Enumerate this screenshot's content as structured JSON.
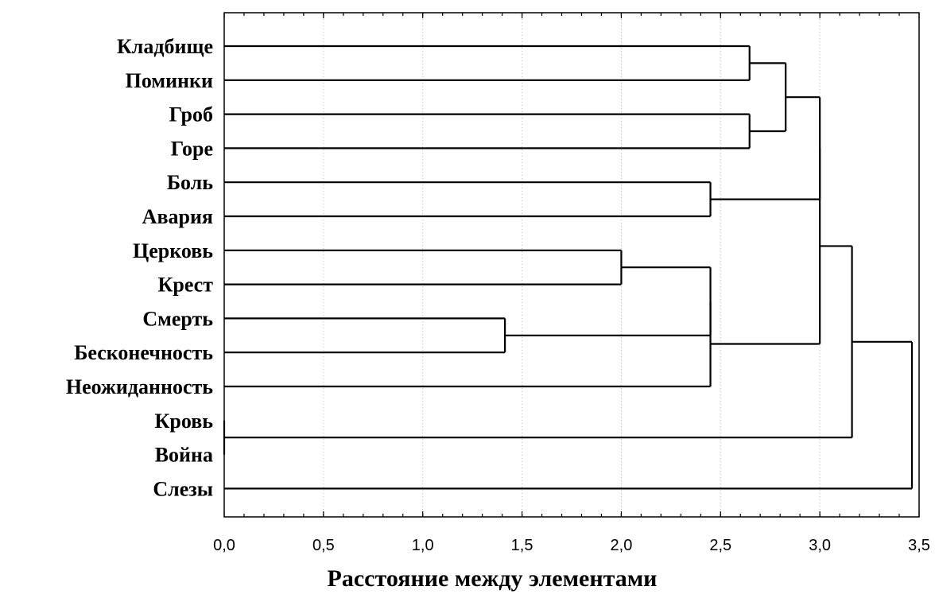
{
  "chart_data": {
    "type": "dendrogram",
    "title": "",
    "xlabel": "Расстояние между элементами",
    "ylabel": "",
    "xlim": [
      0,
      3.5
    ],
    "grid": true,
    "xticks": [
      "0,0",
      "0,5",
      "1,0",
      "1,5",
      "2,0",
      "2,5",
      "3,0",
      "3,5"
    ],
    "leaves": [
      "Кладбище",
      "Поминки",
      "Гроб",
      "Горе",
      "Боль",
      "Авария",
      "Церковь",
      "Крест",
      "Смерть",
      "Бесконечность",
      "Неожиданность",
      "Кровь",
      "Война",
      "Слезы"
    ],
    "merges": [
      {
        "a": "L11",
        "b": "L12",
        "height": 0.0
      },
      {
        "a": "L8",
        "b": "L9",
        "height": 1.414
      },
      {
        "a": "L6",
        "b": "L7",
        "height": 2.0
      },
      {
        "a": "M2",
        "b": "M1",
        "height": 2.449
      },
      {
        "a": "M3",
        "b": "L10",
        "height": 2.449
      },
      {
        "a": "L4",
        "b": "L5",
        "height": 2.449
      },
      {
        "a": "L0",
        "b": "L1",
        "height": 2.646
      },
      {
        "a": "L2",
        "b": "L3",
        "height": 2.646
      },
      {
        "a": "M6",
        "b": "M7",
        "height": 2.828
      },
      {
        "a": "M8",
        "b": "M5",
        "height": 3.0
      },
      {
        "a": "M9",
        "b": "M4",
        "height": 3.0
      },
      {
        "a": "M10",
        "b": "M0",
        "height": 3.162
      },
      {
        "a": "M11",
        "b": "L13",
        "height": 3.464
      }
    ]
  }
}
